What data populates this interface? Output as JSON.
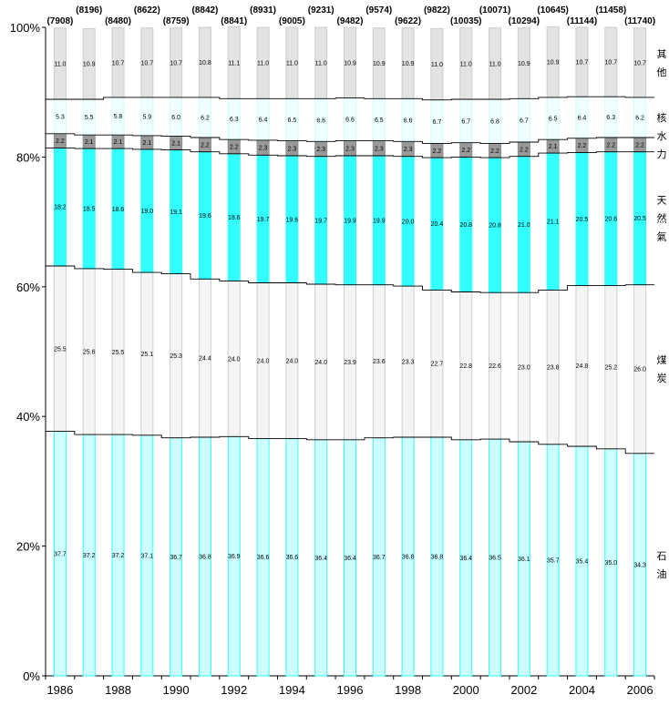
{
  "chart_data": {
    "type": "bar",
    "stacked": "percent",
    "years": [
      1986,
      1987,
      1988,
      1989,
      1990,
      1991,
      1992,
      1993,
      1994,
      1995,
      1996,
      1997,
      1998,
      1999,
      2000,
      2001,
      2002,
      2003,
      2004,
      2005,
      2006
    ],
    "x_tick_labels": [
      "1986",
      "1988",
      "1990",
      "1992",
      "1994",
      "1996",
      "1998",
      "2000",
      "2002",
      "2004",
      "2006"
    ],
    "y_tick_labels": [
      "0%",
      "20%",
      "40%",
      "60%",
      "80%",
      "100%"
    ],
    "ylim": [
      0,
      100
    ],
    "totals": [
      "(7908)",
      "(8196)",
      "(8480)",
      "(8622)",
      "(8759)",
      "(8842)",
      "(8841)",
      "(8931)",
      "(9005)",
      "(9231)",
      "(9482)",
      "(9574)",
      "(9622)",
      "(9822)",
      "(10035)",
      "(10071)",
      "(10294)",
      "(10645)",
      "(11144)",
      "(11458)",
      "(11740)"
    ],
    "series": [
      {
        "key": "oil",
        "legend": "石油",
        "color": "#ccffff",
        "edge": "#33ffff",
        "values": [
          37.7,
          37.2,
          37.2,
          37.1,
          36.7,
          36.8,
          36.9,
          36.6,
          36.6,
          36.4,
          36.4,
          36.7,
          36.8,
          36.8,
          36.4,
          36.5,
          36.1,
          35.7,
          35.4,
          35.0,
          34.3
        ]
      },
      {
        "key": "coal",
        "legend": "煤炭",
        "color": "#f4f4f4",
        "edge": "#cfcfcf",
        "values": [
          25.5,
          25.6,
          25.5,
          25.1,
          25.3,
          24.4,
          24.0,
          24.0,
          24.0,
          24.0,
          23.9,
          23.6,
          23.3,
          22.7,
          22.8,
          22.6,
          23.0,
          23.8,
          24.8,
          25.2,
          26.0
        ]
      },
      {
        "key": "gas",
        "legend": "天然氣",
        "color": "#33ffff",
        "edge": "#33ffff",
        "values": [
          18.2,
          18.5,
          18.6,
          19.0,
          19.1,
          19.6,
          19.6,
          19.7,
          19.6,
          19.7,
          19.9,
          19.9,
          20.0,
          20.4,
          20.8,
          20.8,
          21.0,
          21.1,
          20.5,
          20.6,
          20.5
        ]
      },
      {
        "key": "hydro",
        "legend": "水力",
        "color": "#999999",
        "edge": "#888888",
        "values": [
          2.2,
          2.1,
          2.1,
          2.1,
          2.1,
          2.2,
          2.2,
          2.3,
          2.3,
          2.3,
          2.3,
          2.3,
          2.3,
          2.2,
          2.2,
          2.2,
          2.2,
          2.1,
          2.2,
          2.2,
          2.2
        ]
      },
      {
        "key": "nuclear",
        "legend": "核",
        "color": "#f0ffff",
        "edge": "#ccffff",
        "values": [
          5.3,
          5.5,
          5.8,
          5.9,
          6.0,
          6.2,
          6.3,
          6.4,
          6.5,
          6.6,
          6.6,
          6.5,
          6.6,
          6.7,
          6.7,
          6.8,
          6.7,
          6.5,
          6.4,
          6.3,
          6.2
        ]
      },
      {
        "key": "other",
        "legend": "其他",
        "color": "#e3e3e3",
        "edge": "#cccccc",
        "values": [
          11.0,
          10.9,
          10.7,
          10.7,
          10.7,
          10.8,
          11.1,
          11.0,
          11.0,
          11.0,
          10.9,
          10.9,
          10.9,
          11.0,
          11.0,
          11.0,
          10.9,
          10.9,
          10.7,
          10.7,
          10.7
        ]
      }
    ]
  }
}
